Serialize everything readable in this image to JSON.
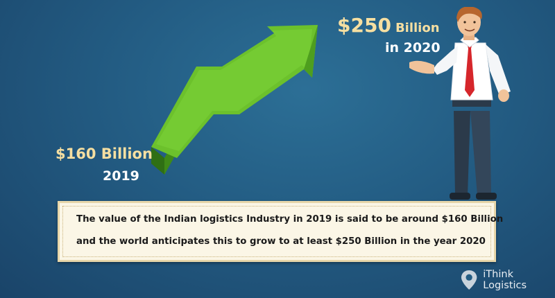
{
  "start": {
    "value": "$160 Billion",
    "year": "2019"
  },
  "end": {
    "value": "$250",
    "unit": "Billion",
    "year": "in 2020"
  },
  "caption": {
    "line1": "The value of the Indian logistics Industry in 2019 is said to be around $160 Billion",
    "line2": "and the world anticipates this to grow to at least $250 Billion in the year 2020"
  },
  "logo": {
    "text": "iThink Logistics",
    "icon": "location-pin-icon"
  },
  "colors": {
    "background": "#235c83",
    "arrow": "#6cc12c",
    "arrow_dark": "#3f8a18",
    "highlight_text": "#f6dfa1",
    "caption_bg": "#fbf6e6"
  }
}
